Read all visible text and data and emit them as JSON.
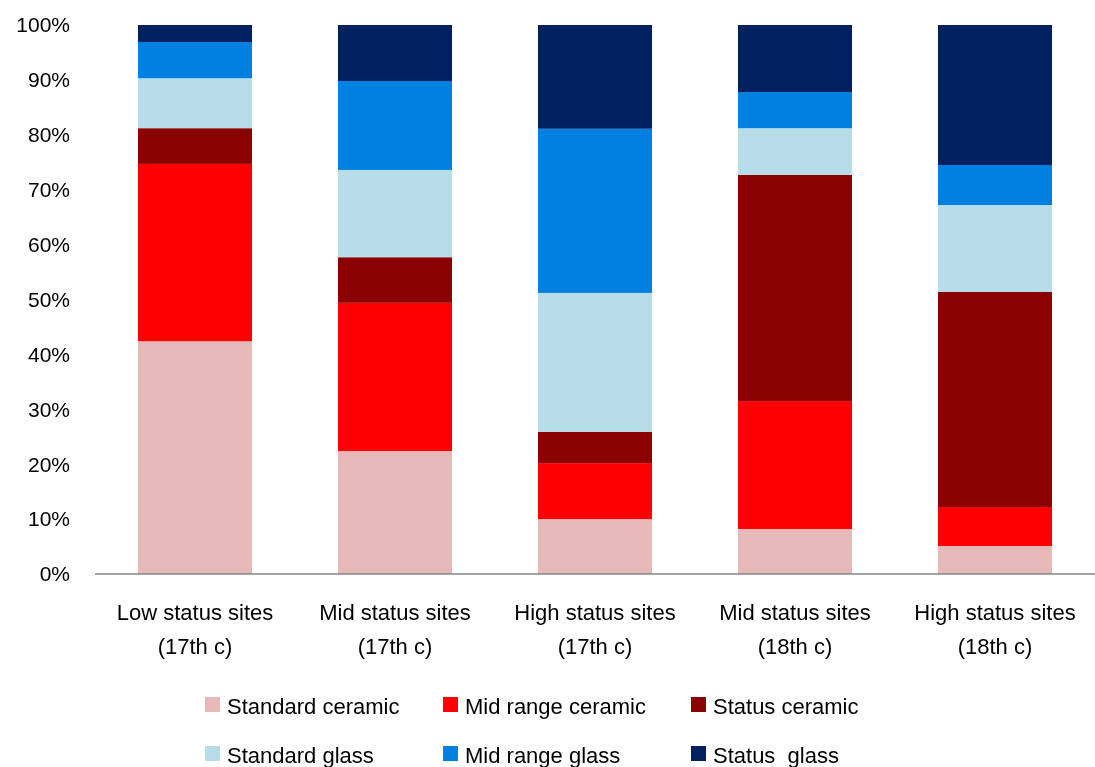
{
  "chart_data": {
    "type": "bar",
    "stacked": true,
    "categories": [
      "Low status sites\n(17th c)",
      "Mid status sites\n(17th c)",
      "High status sites\n(17th c)",
      "Mid status sites\n(18th c)",
      "High status sites\n(18th c)"
    ],
    "series": [
      {
        "name": "Standard ceramic",
        "color": "#e6b9b8",
        "values": [
          42.4,
          22.4,
          10.0,
          8.2,
          5.1
        ]
      },
      {
        "name": "Mid range ceramic",
        "color": "#ff0000",
        "values": [
          32.3,
          27.0,
          10.2,
          23.3,
          7.1
        ]
      },
      {
        "name": "Status ceramic",
        "color": "#8b0000",
        "values": [
          6.5,
          8.3,
          5.7,
          41.2,
          39.2
        ]
      },
      {
        "name": "Standard glass",
        "color": "#b7dee8",
        "values": [
          9.1,
          15.9,
          25.3,
          8.5,
          15.8
        ]
      },
      {
        "name": "Mid range glass",
        "color": "#0080e0",
        "values": [
          6.6,
          16.2,
          29.9,
          6.6,
          7.3
        ]
      },
      {
        "name": "Status  glass",
        "color": "#002060",
        "values": [
          3.1,
          10.2,
          18.9,
          12.2,
          25.5
        ]
      }
    ],
    "ylim": [
      0,
      100
    ],
    "yticks": [
      {
        "value": 0,
        "label": "0%"
      },
      {
        "value": 10,
        "label": "10%"
      },
      {
        "value": 20,
        "label": "20%"
      },
      {
        "value": 30,
        "label": "30%"
      },
      {
        "value": 40,
        "label": "40%"
      },
      {
        "value": 50,
        "label": "50%"
      },
      {
        "value": 60,
        "label": "60%"
      },
      {
        "value": 70,
        "label": "70%"
      },
      {
        "value": 80,
        "label": "80%"
      },
      {
        "value": 90,
        "label": "90%"
      },
      {
        "value": 100,
        "label": "100%"
      }
    ],
    "grid": false,
    "legend": "bottom"
  }
}
